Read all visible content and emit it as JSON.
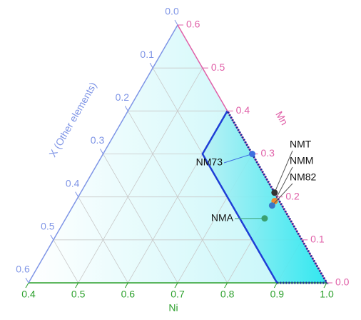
{
  "chart_data": {
    "type": "ternary",
    "axes": {
      "ni": {
        "title": "Ni",
        "color": "#2ca02c",
        "lim": [
          0.4,
          1.0
        ],
        "ticks": [
          0.4,
          0.5,
          0.6,
          0.7,
          0.8,
          0.9,
          {
            "value": 1.0,
            "label": "1.0"
          }
        ]
      },
      "mn": {
        "title": "Mn",
        "color": "#e060a8",
        "lim": [
          0,
          0.6
        ],
        "ticks": [
          {
            "value": 0,
            "label": "0.0"
          },
          0.1,
          0.2,
          0.3,
          0.4,
          0.5,
          0.6
        ]
      },
      "x": {
        "title": "X (Other elements)",
        "color": "#7f95e6",
        "lim": [
          0,
          0.6
        ],
        "ticks": [
          {
            "value": 0,
            "label": "0.0"
          },
          0.1,
          0.2,
          0.3,
          0.4,
          0.5,
          0.6
        ]
      }
    },
    "grid": true,
    "region": {
      "color": "#1f3fd6",
      "ni": [
        0.6,
        0.6,
        0.9,
        1.0
      ],
      "mn": [
        0.4,
        0.3,
        0,
        0
      ],
      "x": [
        0,
        0.1,
        0.1,
        0
      ]
    },
    "points": [
      {
        "name": "NM73",
        "color": "#3f6fe0",
        "ni": 0.7,
        "mn": 0.3,
        "x": 0
      },
      {
        "name": "NMT",
        "color": "#333333",
        "ni": 0.79,
        "mn": 0.21,
        "x": 0
      },
      {
        "name": "NMM",
        "color": "#f08a2a",
        "ni": 0.8,
        "mn": 0.19,
        "x": 0.01
      },
      {
        "name": "NM82",
        "color": "#3a78c8",
        "ni": 0.8,
        "mn": 0.18,
        "x": 0.02
      },
      {
        "name": "NMA",
        "color": "#3aa070",
        "ni": 0.8,
        "mn": 0.15,
        "x": 0.05
      }
    ]
  }
}
